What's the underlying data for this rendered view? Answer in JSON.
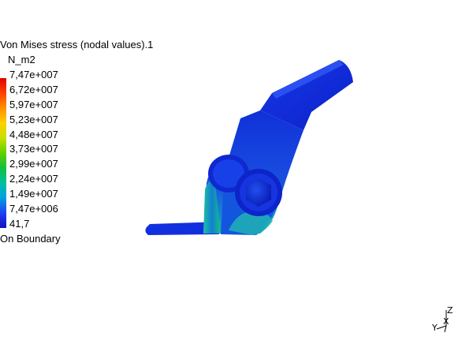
{
  "legend": {
    "title": "Von Mises stress (nodal values).1",
    "unit": "N_m2",
    "values": [
      "7,47e+007",
      "6,72e+007",
      "5,97e+007",
      "5,23e+007",
      "4,48e+007",
      "3,73e+007",
      "2,99e+007",
      "2,24e+007",
      "1,49e+007",
      "7,47e+006",
      "41,7"
    ],
    "footer": "On Boundary"
  },
  "triad": {
    "z": "Z",
    "y": "Y",
    "x": "X"
  },
  "colors": {
    "max": "#e00000",
    "min": "#1010c0",
    "part": "#0a2ad8"
  }
}
